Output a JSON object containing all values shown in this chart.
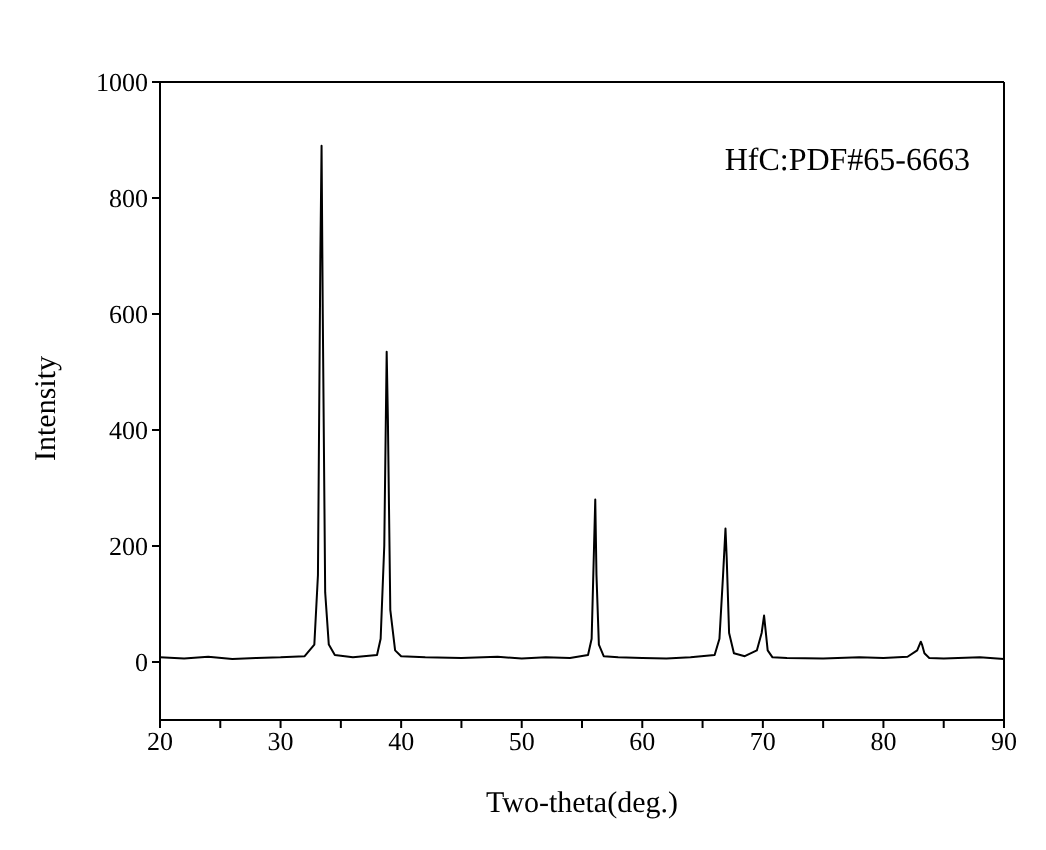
{
  "chart_data": {
    "type": "line",
    "xlabel": "Two-theta(deg.)",
    "ylabel": "Intensity",
    "annotations": [
      "HfC:PDF#65-6663"
    ],
    "x": [
      20,
      22,
      24,
      26,
      28,
      30,
      32,
      32.8,
      33.1,
      33.3,
      33.4,
      33.5,
      33.7,
      34,
      34.5,
      36,
      38,
      38.3,
      38.6,
      38.8,
      38.9,
      39.1,
      39.5,
      40,
      42,
      45,
      48,
      50,
      52,
      54,
      55.5,
      55.8,
      56,
      56.1,
      56.2,
      56.4,
      56.8,
      58,
      60,
      62,
      64,
      66,
      66.4,
      66.7,
      66.9,
      67,
      67.2,
      67.6,
      68.5,
      69.5,
      69.9,
      70.1,
      70.2,
      70.4,
      70.8,
      72,
      75,
      78,
      80,
      82,
      82.8,
      83.1,
      83.2,
      83.4,
      83.8,
      85,
      88,
      90
    ],
    "series": [
      {
        "color": "#000000",
        "values": [
          8,
          6,
          9,
          5,
          7,
          8,
          10,
          30,
          150,
          700,
          890,
          600,
          120,
          30,
          12,
          8,
          12,
          40,
          200,
          535,
          420,
          90,
          20,
          10,
          8,
          7,
          9,
          6,
          8,
          7,
          12,
          40,
          200,
          280,
          150,
          30,
          10,
          8,
          7,
          6,
          8,
          12,
          40,
          150,
          230,
          180,
          50,
          15,
          10,
          20,
          50,
          80,
          60,
          20,
          8,
          7,
          6,
          8,
          7,
          9,
          20,
          35,
          30,
          15,
          7,
          6,
          8,
          5
        ]
      }
    ],
    "xlim": [
      20,
      90
    ],
    "ylim": [
      -100,
      1000
    ],
    "xticks": [
      20,
      {
        "value": 25,
        "label": null
      },
      30,
      {
        "value": 35,
        "label": null
      },
      40,
      {
        "value": 45,
        "label": null
      },
      50,
      {
        "value": 55,
        "label": null
      },
      60,
      {
        "value": 65,
        "label": null
      },
      70,
      {
        "value": 75,
        "label": null
      },
      80,
      {
        "value": 85,
        "label": null
      },
      90
    ],
    "yticks": [
      0,
      200,
      400,
      600,
      800,
      1000
    ],
    "grid": false,
    "legend": false,
    "marker": "none",
    "line_style": "solid"
  }
}
